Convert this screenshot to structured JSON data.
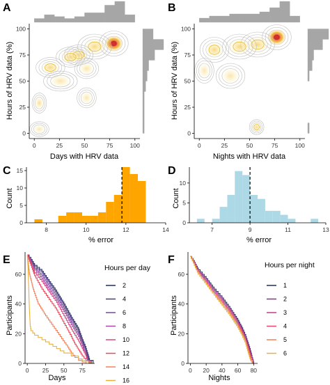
{
  "panels": {
    "A": {
      "letter": "A",
      "xlabel": "Days with HRV data",
      "ylabel": "Hours of HRV data (%)",
      "xticks": [
        "0",
        "25",
        "50",
        "75",
        "100"
      ],
      "yticks": [
        "0",
        "25",
        "50",
        "75",
        "100"
      ]
    },
    "B": {
      "letter": "B",
      "xlabel": "Nights with HRV data",
      "ylabel": "Hours of HRV data (%)",
      "xticks": [
        "0",
        "25",
        "50",
        "75",
        "100"
      ],
      "yticks": [
        "0",
        "25",
        "50",
        "75",
        "100"
      ]
    },
    "C": {
      "letter": "C",
      "xlabel": "% error",
      "ylabel": "Count",
      "xticks": [
        "8",
        "10",
        "12",
        "14"
      ],
      "yticks": [
        "0",
        "5",
        "10",
        "15"
      ]
    },
    "D": {
      "letter": "D",
      "xlabel": "% error",
      "ylabel": "Count",
      "xticks": [
        "7",
        "9",
        "11",
        "13"
      ],
      "yticks": [
        "0",
        "5",
        "10"
      ]
    },
    "E": {
      "letter": "E",
      "xlabel": "Days",
      "ylabel": "Participants",
      "xticks": [
        "0",
        "25",
        "50",
        "75"
      ],
      "yticks": [
        "0",
        "20",
        "40",
        "60"
      ],
      "legend_title": "Hours per day"
    },
    "F": {
      "letter": "F",
      "xlabel": "Nights",
      "ylabel": "Participants",
      "xticks": [
        "0",
        "20",
        "40",
        "60",
        "80"
      ],
      "yticks": [
        "0",
        "20",
        "40",
        "60"
      ],
      "legend_title": "Hours per night"
    }
  },
  "chart_data": [
    {
      "panel": "A",
      "type": "heatmap",
      "subtype": "2d-density-contour with marginal histograms",
      "xlabel": "Days with HRV data",
      "ylabel": "Hours of HRV data (%)",
      "xlim": [
        -5,
        105
      ],
      "ylim": [
        -5,
        105
      ],
      "grid": false,
      "density_peaks": [
        {
          "x": 79,
          "y": 86,
          "weight": 1.0,
          "sx": 6,
          "sy": 5
        },
        {
          "x": 60,
          "y": 83,
          "weight": 0.35,
          "sx": 7,
          "sy": 5
        },
        {
          "x": 44,
          "y": 75,
          "weight": 0.4,
          "sx": 6,
          "sy": 4
        },
        {
          "x": 36,
          "y": 73,
          "weight": 0.3,
          "sx": 6,
          "sy": 4
        },
        {
          "x": 16,
          "y": 63,
          "weight": 0.35,
          "sx": 6,
          "sy": 4
        },
        {
          "x": 5,
          "y": 29,
          "weight": 0.25,
          "sx": 3,
          "sy": 4
        },
        {
          "x": 52,
          "y": 62,
          "weight": 0.12,
          "sx": 5,
          "sy": 4
        },
        {
          "x": 26,
          "y": 50,
          "weight": 0.1,
          "sx": 7,
          "sy": 4
        },
        {
          "x": 52,
          "y": 34,
          "weight": 0.08,
          "sx": 4,
          "sy": 4
        },
        {
          "x": 5,
          "y": 4,
          "weight": 0.06,
          "sx": 4,
          "sy": 3
        }
      ],
      "marginal_x_hist": {
        "bins": [
          0,
          10,
          20,
          30,
          40,
          50,
          60,
          70,
          80,
          90,
          100
        ],
        "counts": [
          2,
          4,
          3,
          2,
          3,
          5,
          5,
          9,
          11,
          4
        ]
      },
      "marginal_y_hist": {
        "bins": [
          0,
          10,
          20,
          30,
          40,
          50,
          60,
          70,
          80,
          90,
          100
        ],
        "counts": [
          1,
          1,
          1,
          1,
          2,
          3,
          4,
          8,
          14,
          7
        ]
      }
    },
    {
      "panel": "B",
      "type": "heatmap",
      "subtype": "2d-density-contour with marginal histograms",
      "xlabel": "Nights with HRV data",
      "ylabel": "Hours of HRV data (%)",
      "xlim": [
        -5,
        105
      ],
      "ylim": [
        -5,
        105
      ],
      "grid": false,
      "density_peaks": [
        {
          "x": 77,
          "y": 92,
          "weight": 1.0,
          "sx": 6,
          "sy": 5
        },
        {
          "x": 58,
          "y": 85,
          "weight": 0.35,
          "sx": 7,
          "sy": 5
        },
        {
          "x": 40,
          "y": 83,
          "weight": 0.35,
          "sx": 7,
          "sy": 5
        },
        {
          "x": 15,
          "y": 80,
          "weight": 0.35,
          "sx": 6,
          "sy": 5
        },
        {
          "x": 31,
          "y": 55,
          "weight": 0.1,
          "sx": 6,
          "sy": 5
        },
        {
          "x": 57,
          "y": 6,
          "weight": 0.3,
          "sx": 3,
          "sy": 3
        },
        {
          "x": 5,
          "y": 60,
          "weight": 0.06,
          "sx": 4,
          "sy": 5
        }
      ],
      "marginal_x_hist": {
        "bins": [
          0,
          10,
          20,
          30,
          40,
          50,
          60,
          70,
          80,
          90,
          100
        ],
        "counts": [
          2,
          3,
          3,
          4,
          4,
          4,
          5,
          7,
          10,
          3
        ]
      },
      "marginal_y_hist": {
        "bins": [
          0,
          10,
          20,
          30,
          40,
          50,
          60,
          70,
          80,
          90,
          100
        ],
        "counts": [
          1,
          0,
          0,
          0,
          0,
          1,
          3,
          4,
          10,
          14
        ]
      }
    },
    {
      "panel": "C",
      "type": "bar",
      "subtype": "histogram",
      "xlabel": "% error",
      "ylabel": "Count",
      "xlim": [
        7,
        14
      ],
      "ylim": [
        0,
        16
      ],
      "color": "#FFA500",
      "bins": [
        7.4,
        7.8,
        8.2,
        8.6,
        9.0,
        9.4,
        9.8,
        10.2,
        10.6,
        11.0,
        11.4,
        11.8,
        12.2,
        12.6,
        13.0
      ],
      "counts": [
        1,
        0,
        0,
        2,
        3,
        3,
        2,
        2,
        3,
        6,
        8,
        16,
        14,
        12
      ],
      "vline": {
        "x": 11.8,
        "style": "dashed"
      }
    },
    {
      "panel": "D",
      "type": "bar",
      "subtype": "histogram",
      "xlabel": "% error",
      "ylabel": "Count",
      "xlim": [
        5.8,
        13
      ],
      "ylim": [
        0,
        14
      ],
      "color": "#ADD8E6",
      "bins": [
        6.2,
        6.6,
        7.0,
        7.4,
        7.8,
        8.2,
        8.6,
        9.0,
        9.4,
        9.8,
        10.2,
        10.6,
        11.0,
        11.4,
        11.8,
        12.2,
        12.6
      ],
      "counts": [
        1,
        0,
        1,
        4,
        7,
        13,
        12,
        7,
        6,
        3,
        3,
        2,
        1,
        0,
        0,
        1
      ],
      "vline": {
        "x": 9.0,
        "style": "dashed"
      }
    },
    {
      "panel": "E",
      "type": "line",
      "subtype": "step survival curves",
      "xlabel": "Days",
      "ylabel": "Participants",
      "xlim": [
        -3,
        92
      ],
      "ylim": [
        0,
        75
      ],
      "legend": {
        "title": "Hours per day",
        "position": "right"
      },
      "series": [
        {
          "name": "2",
          "color": "#1B2E5E",
          "x": [
            0,
            5,
            10,
            20,
            30,
            40,
            50,
            60,
            70,
            75,
            80,
            85,
            90
          ],
          "y": [
            73,
            70,
            66,
            62,
            55,
            48,
            40,
            31,
            23,
            16,
            10,
            2,
            0
          ]
        },
        {
          "name": "4",
          "color": "#4E3A7E",
          "x": [
            0,
            5,
            10,
            20,
            30,
            40,
            50,
            60,
            70,
            75,
            80,
            84,
            88
          ],
          "y": [
            73,
            70,
            65,
            61,
            54,
            47,
            39,
            30,
            22,
            15,
            9,
            2,
            0
          ]
        },
        {
          "name": "6",
          "color": "#6F4A98",
          "x": [
            0,
            5,
            10,
            20,
            30,
            40,
            50,
            60,
            70,
            75,
            80,
            83,
            87
          ],
          "y": [
            73,
            69,
            64,
            59,
            52,
            45,
            37,
            28,
            20,
            14,
            8,
            2,
            0
          ]
        },
        {
          "name": "8",
          "color": "#A04AA0",
          "x": [
            0,
            5,
            10,
            20,
            30,
            40,
            50,
            60,
            70,
            75,
            80,
            82,
            86
          ],
          "y": [
            73,
            68,
            63,
            57,
            50,
            43,
            35,
            26,
            18,
            12,
            6,
            2,
            0
          ]
        },
        {
          "name": "10",
          "color": "#D2457F",
          "x": [
            0,
            5,
            10,
            20,
            30,
            40,
            50,
            60,
            70,
            75,
            80,
            82,
            85
          ],
          "y": [
            73,
            67,
            61,
            55,
            48,
            41,
            32,
            23,
            15,
            10,
            5,
            2,
            0
          ]
        },
        {
          "name": "12",
          "color": "#E8485A",
          "x": [
            0,
            5,
            10,
            20,
            30,
            40,
            50,
            60,
            65,
            70,
            75,
            80,
            84
          ],
          "y": [
            73,
            66,
            59,
            50,
            43,
            36,
            27,
            18,
            13,
            9,
            5,
            2,
            0
          ]
        },
        {
          "name": "14",
          "color": "#F2805A",
          "x": [
            0,
            3,
            8,
            15,
            25,
            35,
            45,
            55,
            60,
            65,
            70,
            75,
            80
          ],
          "y": [
            73,
            60,
            50,
            40,
            32,
            25,
            18,
            11,
            7,
            4,
            2,
            1,
            0
          ]
        },
        {
          "name": "16",
          "color": "#E8B23A",
          "x": [
            0,
            1,
            2,
            3,
            4,
            5,
            10,
            20,
            30,
            40,
            50,
            60,
            70,
            75,
            80,
            90
          ],
          "y": [
            73,
            65,
            50,
            35,
            25,
            22,
            19,
            16,
            13,
            10,
            7,
            5,
            3,
            2,
            1,
            1
          ]
        }
      ]
    },
    {
      "panel": "F",
      "type": "line",
      "subtype": "step survival curves",
      "xlabel": "Nights",
      "ylabel": "Participants",
      "xlim": [
        -3,
        85
      ],
      "ylim": [
        0,
        75
      ],
      "legend": {
        "title": "Hours per night",
        "position": "right"
      },
      "series": [
        {
          "name": "1",
          "color": "#1B2E5E",
          "x": [
            0,
            5,
            10,
            20,
            30,
            40,
            50,
            60,
            65,
            70,
            75,
            78,
            80
          ],
          "y": [
            72,
            68,
            63,
            57,
            50,
            44,
            37,
            29,
            24,
            18,
            10,
            4,
            0
          ]
        },
        {
          "name": "2",
          "color": "#8B2E8E",
          "x": [
            0,
            5,
            10,
            20,
            30,
            40,
            50,
            60,
            65,
            70,
            75,
            78,
            80
          ],
          "y": [
            72,
            68,
            62,
            56,
            49,
            43,
            36,
            28,
            23,
            17,
            9,
            4,
            0
          ]
        },
        {
          "name": "3",
          "color": "#C23A86",
          "x": [
            0,
            5,
            10,
            20,
            30,
            40,
            50,
            60,
            65,
            70,
            75,
            77,
            79
          ],
          "y": [
            72,
            67,
            62,
            55,
            48,
            42,
            35,
            27,
            22,
            16,
            8,
            3,
            0
          ]
        },
        {
          "name": "4",
          "color": "#E5486A",
          "x": [
            0,
            5,
            10,
            20,
            30,
            40,
            50,
            60,
            65,
            70,
            74,
            77,
            79
          ],
          "y": [
            72,
            67,
            61,
            54,
            47,
            41,
            34,
            26,
            21,
            15,
            8,
            3,
            0
          ]
        },
        {
          "name": "5",
          "color": "#F08050",
          "x": [
            0,
            5,
            10,
            20,
            30,
            40,
            50,
            60,
            65,
            70,
            74,
            76,
            78
          ],
          "y": [
            72,
            66,
            60,
            53,
            46,
            40,
            33,
            25,
            20,
            14,
            7,
            3,
            0
          ]
        },
        {
          "name": "6",
          "color": "#E8B23A",
          "x": [
            0,
            5,
            10,
            20,
            30,
            40,
            50,
            60,
            65,
            70,
            73,
            76,
            78
          ],
          "y": [
            72,
            66,
            60,
            53,
            46,
            39,
            32,
            24,
            19,
            13,
            7,
            2,
            0
          ]
        }
      ]
    }
  ]
}
